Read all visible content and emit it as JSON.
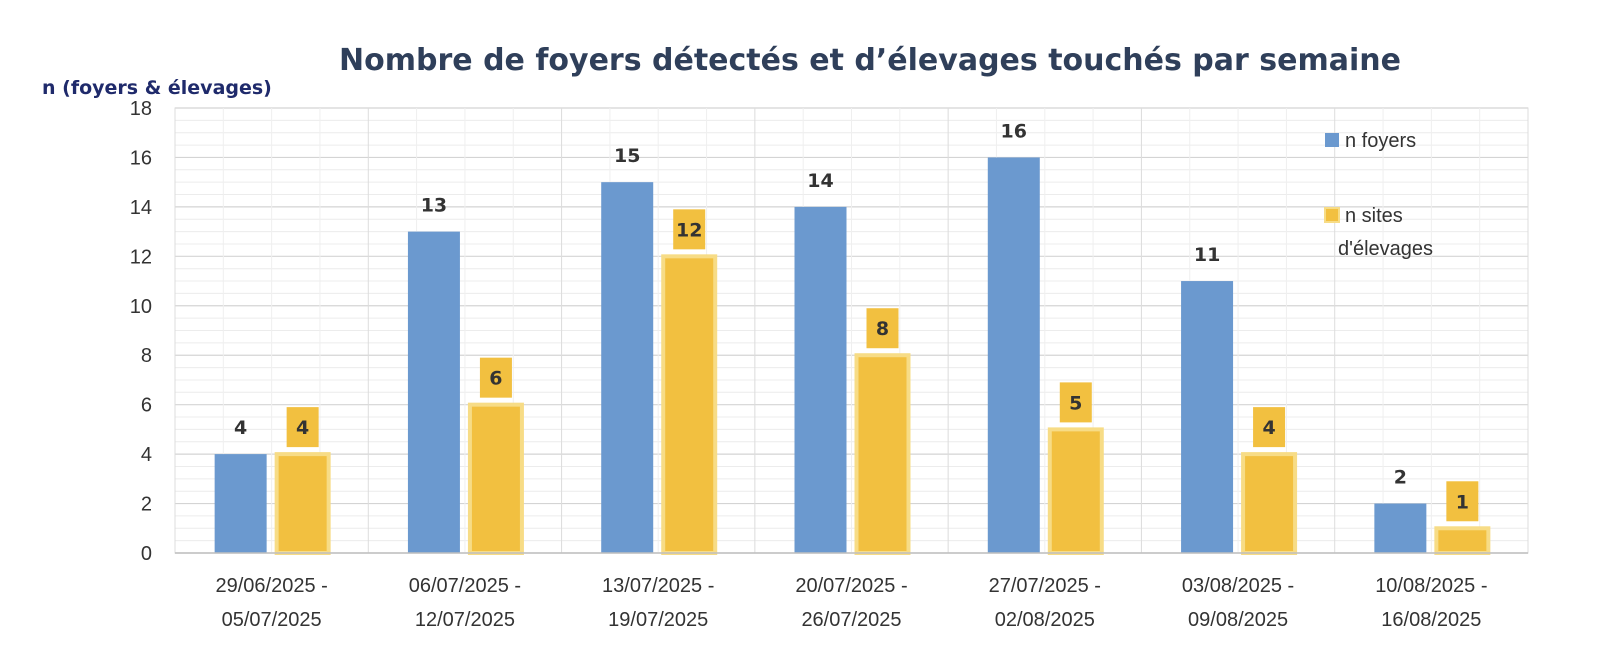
{
  "chart_data": {
    "type": "bar",
    "title": "Nombre de foyers détectés et d’élevages touchés par semaine",
    "ylabel": "n (foyers & élevages)",
    "xlabel": "",
    "ylim": [
      0,
      18
    ],
    "yticks": [
      "0",
      "2",
      "4",
      "6",
      "8",
      "10",
      "12",
      "14",
      "16",
      "18"
    ],
    "categories": [
      [
        "29/06/2025 -",
        "05/07/2025"
      ],
      [
        "06/07/2025 -",
        "12/07/2025"
      ],
      [
        "13/07/2025 -",
        "19/07/2025"
      ],
      [
        "20/07/2025 -",
        "26/07/2025"
      ],
      [
        "27/07/2025 -",
        "02/08/2025"
      ],
      [
        "03/08/2025 -",
        "09/08/2025"
      ],
      [
        "10/08/2025 -",
        "16/08/2025"
      ]
    ],
    "series": [
      {
        "name": "n foyers",
        "values": [
          4,
          13,
          15,
          14,
          16,
          11,
          2
        ],
        "color": "#6b99cf"
      },
      {
        "name": "n sites d'élevages",
        "legend_lines": [
          "n sites",
          "d'élevages"
        ],
        "values": [
          4,
          6,
          12,
          8,
          5,
          4,
          1
        ],
        "color": "#f2c040",
        "border": "#f7dc86"
      }
    ],
    "grid": true,
    "legend_position": "right"
  }
}
